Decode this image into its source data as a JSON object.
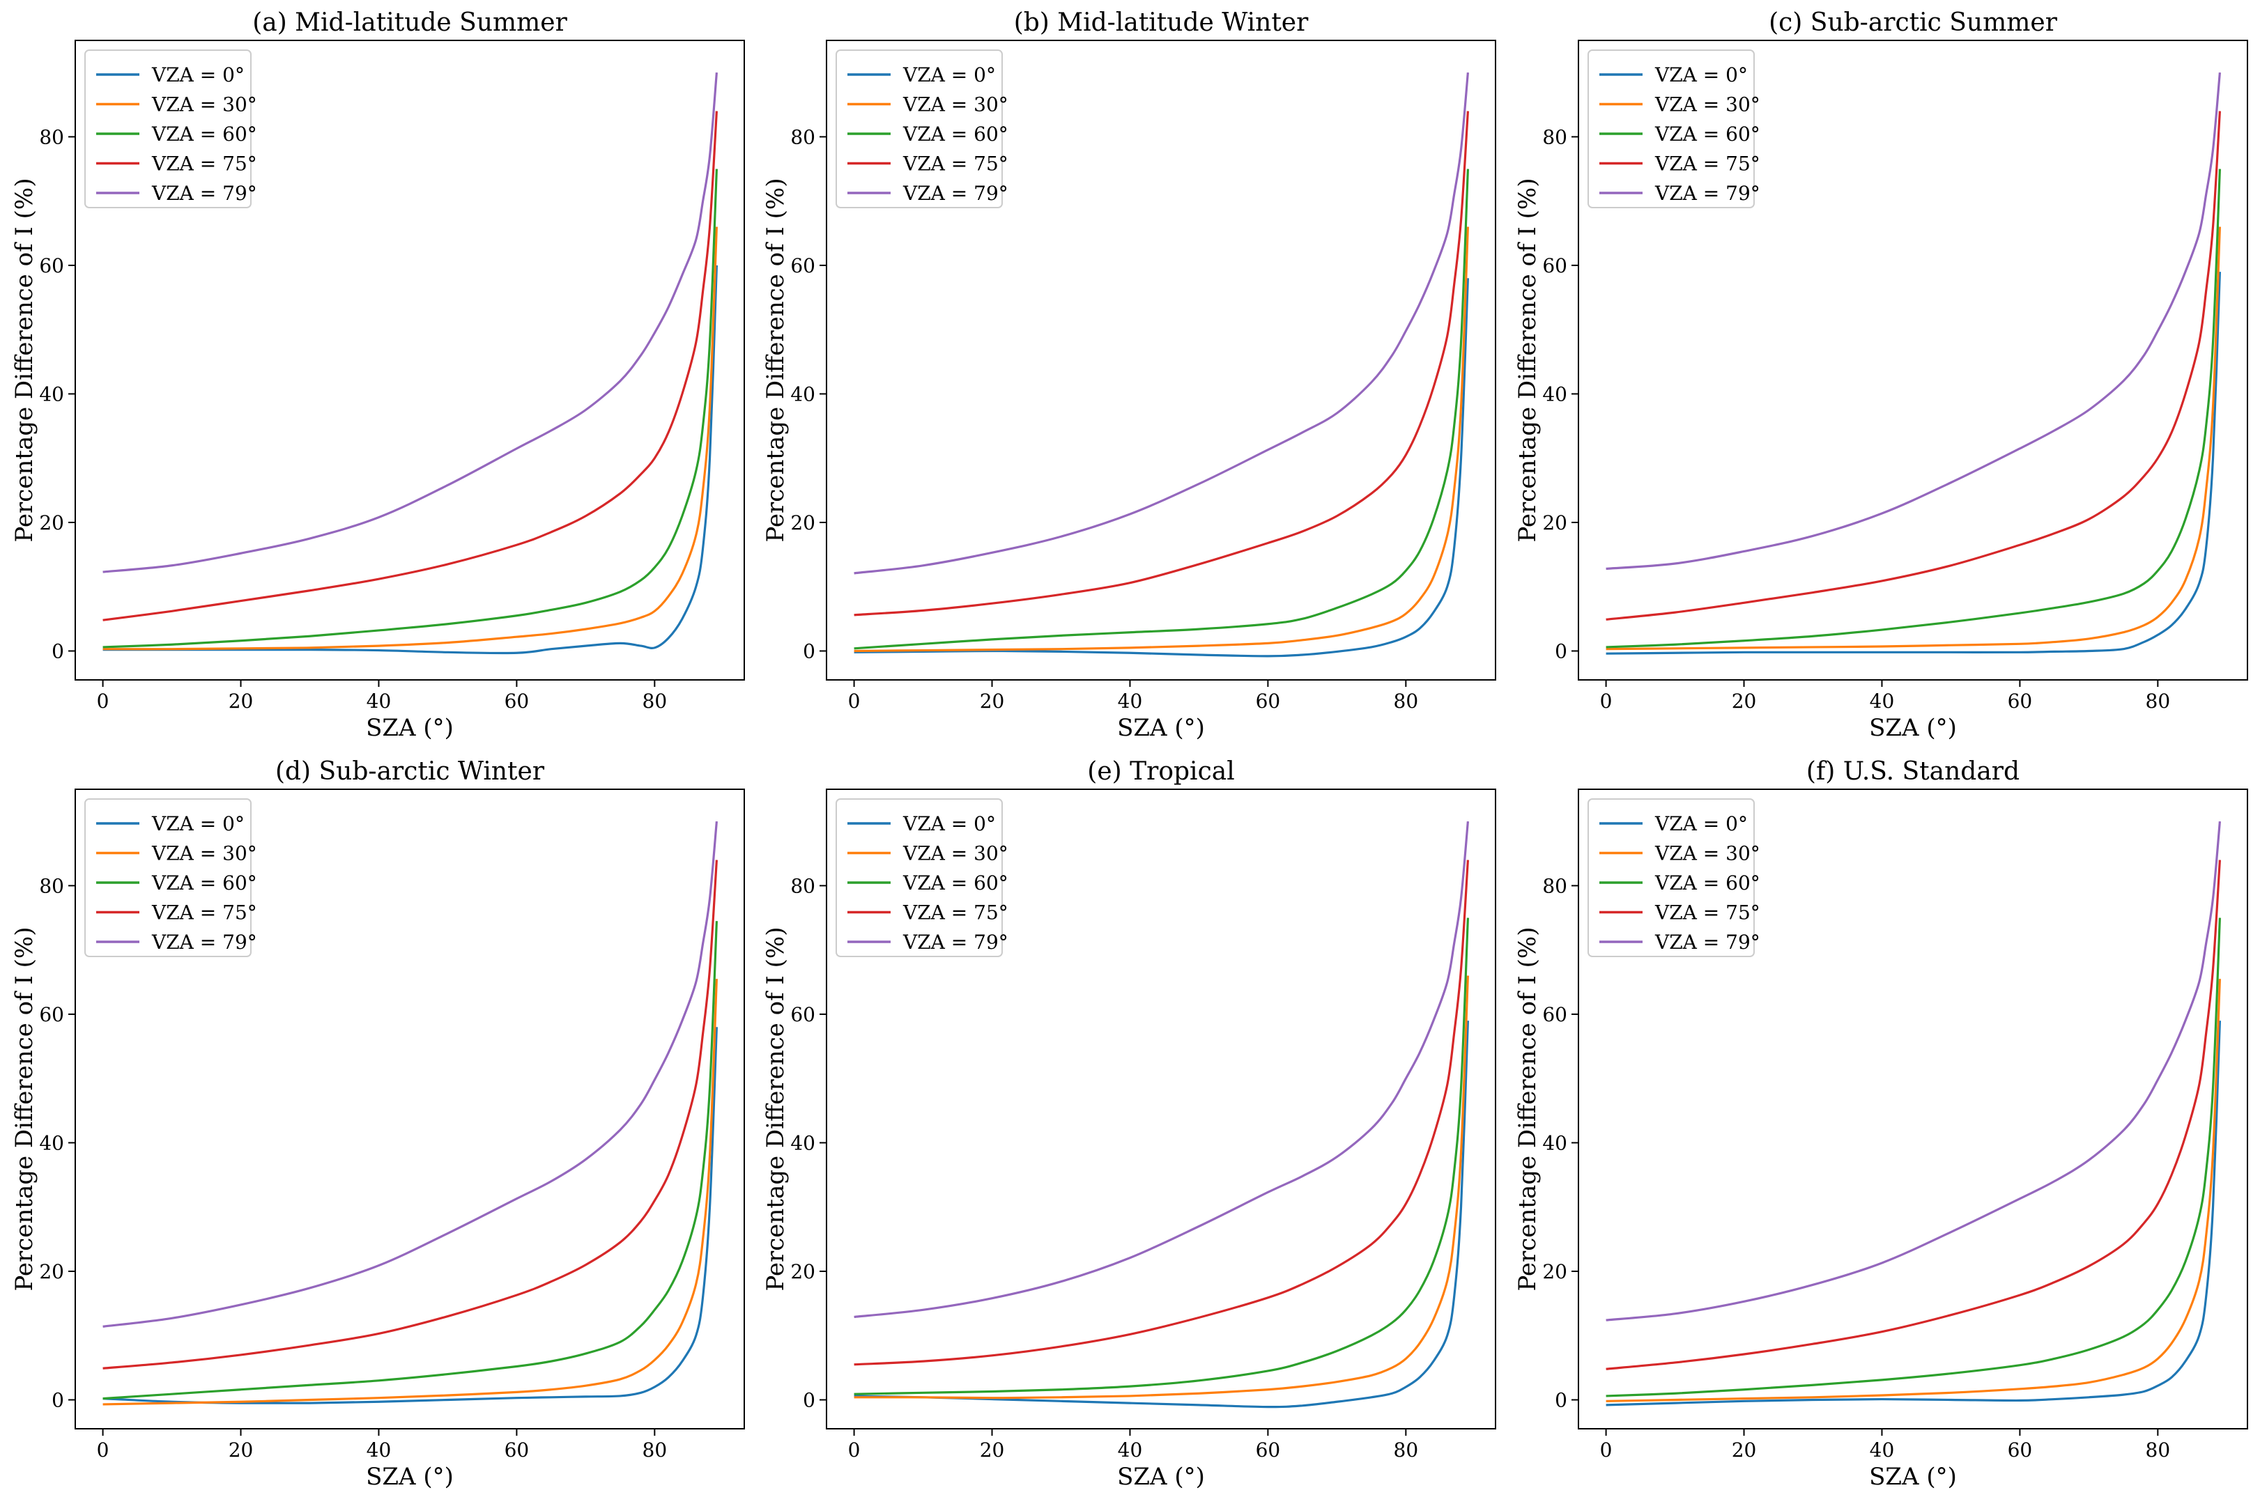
{
  "figure": {
    "colors": {
      "VZA = 0°": "#1f77b4",
      "VZA = 30°": "#ff7f0e",
      "VZA = 60°": "#2ca02c",
      "VZA = 75°": "#d62728",
      "VZA = 79°": "#9467bd"
    }
  },
  "chart_data": [
    {
      "type": "line",
      "title": "(a) Mid-latitude Summer",
      "xlabel": "SZA (°)",
      "ylabel": "Percentage Difference of I (%)",
      "xlim": [
        -4,
        93
      ],
      "ylim": [
        -4.5,
        95
      ],
      "xticks": [
        0,
        20,
        40,
        60,
        80
      ],
      "yticks": [
        0,
        20,
        40,
        60,
        80
      ],
      "legend": "top-left",
      "x": [
        0,
        10,
        20,
        30,
        40,
        50,
        60,
        65,
        70,
        75,
        78,
        80,
        82,
        84,
        86,
        87,
        88,
        89
      ],
      "series": [
        {
          "name": "VZA = 0°",
          "values": [
            0.2,
            0.2,
            0.2,
            0.2,
            0.1,
            -0.2,
            -0.3,
            0.3,
            0.8,
            1.2,
            0.8,
            0.5,
            2.0,
            5.0,
            10.0,
            16.0,
            30.0,
            60.0
          ]
        },
        {
          "name": "VZA = 30°",
          "values": [
            0.3,
            0.3,
            0.4,
            0.5,
            0.8,
            1.3,
            2.2,
            2.7,
            3.4,
            4.3,
            5.2,
            6.2,
            8.5,
            12.0,
            18.0,
            25.0,
            38.0,
            66.0
          ]
        },
        {
          "name": "VZA = 60°",
          "values": [
            0.6,
            1.0,
            1.6,
            2.3,
            3.2,
            4.2,
            5.5,
            6.4,
            7.5,
            9.2,
            11.0,
            13.0,
            16.0,
            21.0,
            28.0,
            35.0,
            48.0,
            75.0
          ]
        },
        {
          "name": "VZA = 75°",
          "values": [
            4.8,
            6.2,
            7.8,
            9.4,
            11.2,
            13.5,
            16.5,
            18.5,
            21.0,
            24.5,
            27.5,
            30.0,
            34.0,
            40.0,
            48.0,
            56.0,
            66.0,
            84.0
          ]
        },
        {
          "name": "VZA = 79°",
          "values": [
            12.3,
            13.3,
            15.2,
            17.5,
            20.8,
            25.8,
            31.5,
            34.3,
            37.5,
            42.0,
            46.0,
            49.5,
            53.5,
            58.5,
            64.0,
            70.0,
            77.0,
            90.0
          ]
        }
      ]
    },
    {
      "type": "line",
      "title": "(b) Mid-latitude Winter",
      "xlabel": "SZA (°)",
      "ylabel": "Percentage Difference of I (%)",
      "xlim": [
        -4,
        93
      ],
      "ylim": [
        -4.5,
        95
      ],
      "xticks": [
        0,
        20,
        40,
        60,
        80
      ],
      "yticks": [
        0,
        20,
        40,
        60,
        80
      ],
      "legend": "top-left",
      "x": [
        0,
        10,
        20,
        30,
        40,
        50,
        60,
        65,
        70,
        75,
        78,
        80,
        82,
        84,
        86,
        87,
        88,
        89
      ],
      "series": [
        {
          "name": "VZA = 0°",
          "values": [
            -0.2,
            -0.1,
            0.0,
            -0.1,
            -0.3,
            -0.6,
            -0.8,
            -0.6,
            -0.1,
            0.6,
            1.4,
            2.2,
            3.5,
            6.0,
            10.0,
            16.0,
            30.0,
            58.0
          ]
        },
        {
          "name": "VZA = 30°",
          "values": [
            0.0,
            0.1,
            0.2,
            0.3,
            0.5,
            0.8,
            1.2,
            1.7,
            2.4,
            3.6,
            4.6,
            5.8,
            8.0,
            11.5,
            18.0,
            25.0,
            38.0,
            66.0
          ]
        },
        {
          "name": "VZA = 60°",
          "values": [
            0.4,
            1.1,
            1.8,
            2.4,
            2.9,
            3.4,
            4.2,
            5.0,
            6.7,
            8.8,
            10.5,
            12.5,
            15.5,
            20.5,
            28.0,
            35.0,
            48.0,
            75.0
          ]
        },
        {
          "name": "VZA = 75°",
          "values": [
            5.6,
            6.3,
            7.4,
            8.8,
            10.6,
            13.5,
            16.8,
            18.6,
            21.0,
            24.5,
            27.5,
            30.5,
            35.0,
            41.0,
            49.0,
            57.0,
            67.0,
            84.0
          ]
        },
        {
          "name": "VZA = 79°",
          "values": [
            12.1,
            13.3,
            15.3,
            17.8,
            21.3,
            26.0,
            31.3,
            34.0,
            37.0,
            41.8,
            46.0,
            49.8,
            54.0,
            59.0,
            65.0,
            71.0,
            78.0,
            90.0
          ]
        }
      ]
    },
    {
      "type": "line",
      "title": "(c) Sub-arctic Summer",
      "xlabel": "SZA (°)",
      "ylabel": "Percentage Difference of I (%)",
      "xlim": [
        -4,
        93
      ],
      "ylim": [
        -4.5,
        95
      ],
      "xticks": [
        0,
        20,
        40,
        60,
        80
      ],
      "yticks": [
        0,
        20,
        40,
        60,
        80
      ],
      "legend": "top-left",
      "x": [
        0,
        10,
        20,
        30,
        40,
        50,
        60,
        65,
        70,
        75,
        78,
        80,
        82,
        84,
        86,
        87,
        88,
        89
      ],
      "series": [
        {
          "name": "VZA = 0°",
          "values": [
            -0.4,
            -0.3,
            -0.2,
            -0.2,
            -0.2,
            -0.2,
            -0.2,
            -0.1,
            0.0,
            0.3,
            1.4,
            2.5,
            4.0,
            6.5,
            10.5,
            16.0,
            30.0,
            59.0
          ]
        },
        {
          "name": "VZA = 30°",
          "values": [
            0.3,
            0.4,
            0.5,
            0.6,
            0.7,
            0.9,
            1.1,
            1.4,
            1.9,
            2.9,
            4.0,
            5.3,
            7.5,
            11.0,
            17.5,
            25.0,
            38.0,
            66.0
          ]
        },
        {
          "name": "VZA = 60°",
          "values": [
            0.6,
            1.0,
            1.6,
            2.3,
            3.3,
            4.5,
            5.9,
            6.7,
            7.6,
            8.9,
            10.5,
            12.5,
            15.5,
            20.5,
            28.0,
            35.0,
            48.0,
            75.0
          ]
        },
        {
          "name": "VZA = 75°",
          "values": [
            4.9,
            6.0,
            7.5,
            9.1,
            10.9,
            13.3,
            16.5,
            18.3,
            20.5,
            24.0,
            27.2,
            30.0,
            34.0,
            40.0,
            48.0,
            56.0,
            66.0,
            84.0
          ]
        },
        {
          "name": "VZA = 79°",
          "values": [
            12.8,
            13.6,
            15.5,
            17.9,
            21.4,
            26.2,
            31.5,
            34.3,
            37.5,
            42.0,
            46.0,
            49.8,
            54.0,
            59.0,
            65.0,
            71.0,
            78.0,
            90.0
          ]
        }
      ]
    },
    {
      "type": "line",
      "title": "(d) Sub-arctic Winter",
      "xlabel": "SZA (°)",
      "ylabel": "Percentage Difference of I (%)",
      "xlim": [
        -4,
        93
      ],
      "ylim": [
        -4.5,
        95
      ],
      "xticks": [
        0,
        20,
        40,
        60,
        80
      ],
      "yticks": [
        0,
        20,
        40,
        60,
        80
      ],
      "legend": "top-left",
      "x": [
        0,
        10,
        20,
        30,
        40,
        50,
        60,
        65,
        70,
        75,
        78,
        80,
        82,
        84,
        86,
        87,
        88,
        89
      ],
      "series": [
        {
          "name": "VZA = 0°",
          "values": [
            0.2,
            -0.3,
            -0.5,
            -0.5,
            -0.3,
            0.0,
            0.3,
            0.4,
            0.5,
            0.6,
            1.1,
            2.0,
            3.5,
            6.0,
            10.0,
            16.0,
            30.0,
            58.0
          ]
        },
        {
          "name": "VZA = 30°",
          "values": [
            -0.7,
            -0.5,
            -0.3,
            0.0,
            0.3,
            0.7,
            1.2,
            1.6,
            2.2,
            3.2,
            4.6,
            6.2,
            8.5,
            12.0,
            18.0,
            25.0,
            38.0,
            65.5
          ]
        },
        {
          "name": "VZA = 60°",
          "values": [
            0.2,
            0.9,
            1.6,
            2.3,
            3.0,
            4.0,
            5.2,
            6.0,
            7.2,
            9.0,
            11.5,
            14.0,
            17.0,
            21.5,
            28.5,
            35.5,
            48.5,
            74.5
          ]
        },
        {
          "name": "VZA = 75°",
          "values": [
            4.9,
            5.8,
            7.0,
            8.5,
            10.3,
            13.0,
            16.3,
            18.4,
            21.0,
            24.5,
            27.8,
            31.0,
            35.0,
            41.0,
            49.0,
            57.0,
            67.0,
            84.0
          ]
        },
        {
          "name": "VZA = 79°",
          "values": [
            11.4,
            12.7,
            14.8,
            17.4,
            20.9,
            25.9,
            31.3,
            34.0,
            37.4,
            42.0,
            46.0,
            49.8,
            54.0,
            59.0,
            65.0,
            71.0,
            78.0,
            90.0
          ]
        }
      ]
    },
    {
      "type": "line",
      "title": "(e) Tropical",
      "xlabel": "SZA (°)",
      "ylabel": "Percentage Difference of I (%)",
      "xlim": [
        -4,
        93
      ],
      "ylim": [
        -4.5,
        95
      ],
      "xticks": [
        0,
        20,
        40,
        60,
        80
      ],
      "yticks": [
        0,
        20,
        40,
        60,
        80
      ],
      "legend": "top-left",
      "x": [
        0,
        10,
        20,
        30,
        40,
        50,
        60,
        65,
        70,
        75,
        78,
        80,
        82,
        84,
        86,
        87,
        88,
        89
      ],
      "series": [
        {
          "name": "VZA = 0°",
          "values": [
            0.6,
            0.4,
            0.1,
            -0.2,
            -0.5,
            -0.8,
            -1.1,
            -0.9,
            -0.3,
            0.4,
            1.0,
            2.0,
            3.5,
            6.0,
            10.0,
            16.0,
            30.0,
            59.0
          ]
        },
        {
          "name": "VZA = 30°",
          "values": [
            0.4,
            0.4,
            0.3,
            0.4,
            0.6,
            1.0,
            1.6,
            2.1,
            2.8,
            3.8,
            5.0,
            6.4,
            8.8,
            12.5,
            18.5,
            25.5,
            38.5,
            66.0
          ]
        },
        {
          "name": "VZA = 60°",
          "values": [
            0.9,
            1.1,
            1.3,
            1.6,
            2.1,
            3.0,
            4.5,
            5.8,
            7.6,
            10.0,
            12.0,
            14.0,
            17.0,
            21.5,
            28.5,
            35.5,
            48.5,
            75.0
          ]
        },
        {
          "name": "VZA = 75°",
          "values": [
            5.5,
            6.0,
            6.9,
            8.3,
            10.2,
            12.8,
            15.9,
            18.0,
            20.7,
            24.2,
            27.5,
            30.5,
            35.0,
            41.0,
            49.0,
            57.0,
            67.0,
            84.0
          ]
        },
        {
          "name": "VZA = 79°",
          "values": [
            12.9,
            14.0,
            15.8,
            18.4,
            22.1,
            27.0,
            32.3,
            34.8,
            37.8,
            42.2,
            46.2,
            50.0,
            54.0,
            59.0,
            65.0,
            71.0,
            78.0,
            90.0
          ]
        }
      ]
    },
    {
      "type": "line",
      "title": "(f) U.S. Standard",
      "xlabel": "SZA (°)",
      "ylabel": "Percentage Difference of I (%)",
      "xlim": [
        -4,
        93
      ],
      "ylim": [
        -4.5,
        95
      ],
      "xticks": [
        0,
        20,
        40,
        60,
        80
      ],
      "yticks": [
        0,
        20,
        40,
        60,
        80
      ],
      "legend": "top-left",
      "x": [
        0,
        10,
        20,
        30,
        40,
        50,
        60,
        65,
        70,
        75,
        78,
        80,
        82,
        84,
        86,
        87,
        88,
        89
      ],
      "series": [
        {
          "name": "VZA = 0°",
          "values": [
            -0.8,
            -0.5,
            -0.2,
            0.0,
            0.1,
            0.0,
            -0.1,
            0.1,
            0.4,
            0.8,
            1.3,
            2.2,
            3.5,
            6.0,
            10.0,
            16.0,
            30.0,
            59.0
          ]
        },
        {
          "name": "VZA = 30°",
          "values": [
            -0.2,
            0.0,
            0.2,
            0.4,
            0.7,
            1.1,
            1.7,
            2.1,
            2.7,
            3.9,
            5.0,
            6.4,
            8.8,
            12.5,
            18.5,
            25.5,
            38.5,
            65.5
          ]
        },
        {
          "name": "VZA = 60°",
          "values": [
            0.6,
            1.0,
            1.6,
            2.3,
            3.1,
            4.1,
            5.4,
            6.4,
            7.8,
            9.8,
            11.8,
            14.0,
            17.0,
            21.5,
            28.5,
            35.5,
            48.5,
            75.0
          ]
        },
        {
          "name": "VZA = 75°",
          "values": [
            4.8,
            5.8,
            7.1,
            8.7,
            10.6,
            13.2,
            16.3,
            18.3,
            20.8,
            24.2,
            27.5,
            30.5,
            35.0,
            41.0,
            49.0,
            57.0,
            67.0,
            84.0
          ]
        },
        {
          "name": "VZA = 79°",
          "values": [
            12.4,
            13.4,
            15.3,
            17.9,
            21.3,
            26.1,
            31.3,
            34.0,
            37.3,
            41.9,
            46.0,
            49.8,
            54.0,
            59.0,
            65.0,
            71.0,
            78.0,
            90.0
          ]
        }
      ]
    }
  ]
}
